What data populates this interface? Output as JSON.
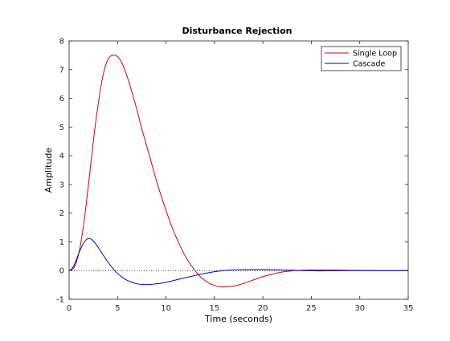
{
  "chart_data": {
    "type": "line",
    "title": "Disturbance Rejection",
    "xlabel": "Time (seconds)",
    "ylabel": "Amplitude",
    "xlim": [
      0,
      35
    ],
    "ylim": [
      -1,
      8
    ],
    "xticks": [
      "0",
      "5",
      "10",
      "15",
      "20",
      "25",
      "30",
      "35"
    ],
    "yticks": [
      "-1",
      "0",
      "1",
      "2",
      "3",
      "4",
      "5",
      "6",
      "7",
      "8"
    ],
    "grid": false,
    "legend_position": "top-right",
    "reference_line": {
      "y": 0,
      "style": "dotted",
      "color": "#000000"
    },
    "series": [
      {
        "name": "Single Loop",
        "color": "#d00000",
        "x": [
          0,
          0.5,
          1,
          1.5,
          2,
          2.5,
          3,
          3.5,
          4,
          4.5,
          5,
          5.5,
          6,
          6.5,
          7,
          7.5,
          8,
          8.5,
          9,
          9.5,
          10,
          10.5,
          11,
          11.5,
          12,
          12.5,
          13,
          13.5,
          14,
          14.5,
          15,
          15.5,
          16,
          16.5,
          17,
          17.5,
          18,
          18.5,
          19,
          19.5,
          20,
          21,
          22,
          23,
          24,
          25,
          26,
          27,
          28,
          29,
          30,
          31,
          32,
          33,
          34,
          35
        ],
        "y": [
          0,
          0.1,
          0.6,
          1.6,
          3.0,
          4.5,
          5.8,
          6.8,
          7.35,
          7.5,
          7.45,
          7.2,
          6.75,
          6.2,
          5.6,
          4.95,
          4.35,
          3.75,
          3.15,
          2.6,
          2.1,
          1.62,
          1.2,
          0.83,
          0.5,
          0.23,
          0.0,
          -0.2,
          -0.34,
          -0.45,
          -0.52,
          -0.56,
          -0.57,
          -0.56,
          -0.54,
          -0.5,
          -0.45,
          -0.39,
          -0.33,
          -0.27,
          -0.21,
          -0.12,
          -0.05,
          -0.01,
          0.01,
          0.02,
          0.02,
          0.02,
          0.015,
          0.01,
          0.005,
          0.003,
          0.0,
          0.0,
          0.0,
          0.0
        ]
      },
      {
        "name": "Cascade",
        "color": "#0000c8",
        "x": [
          0,
          0.25,
          0.5,
          0.75,
          1,
          1.25,
          1.5,
          1.75,
          2,
          2.25,
          2.5,
          2.75,
          3,
          3.5,
          4,
          4.5,
          5,
          5.5,
          6,
          6.5,
          7,
          7.5,
          8,
          8.5,
          9,
          9.5,
          10,
          11,
          12,
          13,
          14,
          15,
          16,
          17,
          18,
          19,
          20,
          21,
          22,
          23,
          24,
          25,
          26,
          27,
          28,
          29,
          30,
          31,
          32,
          33,
          34,
          35
        ],
        "y": [
          0,
          0.05,
          0.18,
          0.38,
          0.6,
          0.8,
          0.96,
          1.07,
          1.12,
          1.1,
          1.03,
          0.93,
          0.81,
          0.55,
          0.3,
          0.08,
          -0.1,
          -0.24,
          -0.34,
          -0.41,
          -0.46,
          -0.48,
          -0.49,
          -0.48,
          -0.46,
          -0.44,
          -0.41,
          -0.33,
          -0.25,
          -0.17,
          -0.1,
          -0.04,
          0.0,
          0.02,
          0.03,
          0.035,
          0.035,
          0.03,
          0.02,
          0.01,
          0.0,
          -0.005,
          -0.01,
          -0.008,
          -0.005,
          -0.002,
          0.0,
          0.0,
          0.0,
          0.0,
          0.0,
          0.0
        ]
      }
    ]
  }
}
